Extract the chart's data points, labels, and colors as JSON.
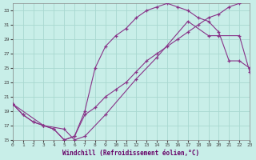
{
  "xlabel": "Windchill (Refroidissement éolien,°C)",
  "bg_color": "#c8eee8",
  "grid_color": "#a8d8d0",
  "line_color": "#883388",
  "xlim": [
    0,
    23
  ],
  "ylim": [
    15,
    34
  ],
  "yticks": [
    15,
    17,
    19,
    21,
    23,
    25,
    27,
    29,
    31,
    33
  ],
  "xticks": [
    0,
    1,
    2,
    3,
    4,
    5,
    6,
    7,
    8,
    9,
    10,
    11,
    12,
    13,
    14,
    15,
    16,
    17,
    18,
    19,
    20,
    21,
    22,
    23
  ],
  "line1_x": [
    0,
    1,
    2,
    3,
    4,
    5,
    6,
    7,
    8,
    9,
    10,
    11,
    12,
    13,
    14,
    15,
    16,
    17,
    18,
    19,
    20,
    21,
    22,
    23
  ],
  "line1_y": [
    20,
    18.5,
    17.5,
    17,
    16.5,
    15,
    15.5,
    19,
    25,
    28,
    29.5,
    30.5,
    32,
    33,
    33.5,
    34,
    33.5,
    33,
    32,
    31.5,
    30,
    26,
    26,
    25
  ],
  "line2_x": [
    0,
    1,
    2,
    3,
    4,
    5,
    6,
    7,
    8,
    9,
    10,
    11,
    12,
    13,
    14,
    15,
    16,
    17,
    18,
    19,
    20,
    21,
    22,
    23
  ],
  "line2_y": [
    20,
    18.5,
    17.5,
    17,
    16.5,
    15,
    15.5,
    18.5,
    19.5,
    21,
    22,
    23,
    24.5,
    26,
    27,
    28,
    29,
    30,
    31,
    32,
    32.5,
    33.5,
    34,
    34.5
  ],
  "line3_x": [
    0,
    3,
    5,
    6,
    7,
    9,
    12,
    14,
    17,
    19,
    20,
    22,
    23
  ],
  "line3_y": [
    20,
    17,
    16.5,
    15,
    15.5,
    18.5,
    23.5,
    26.5,
    31.5,
    29.5,
    29.5,
    29.5,
    24.5
  ]
}
